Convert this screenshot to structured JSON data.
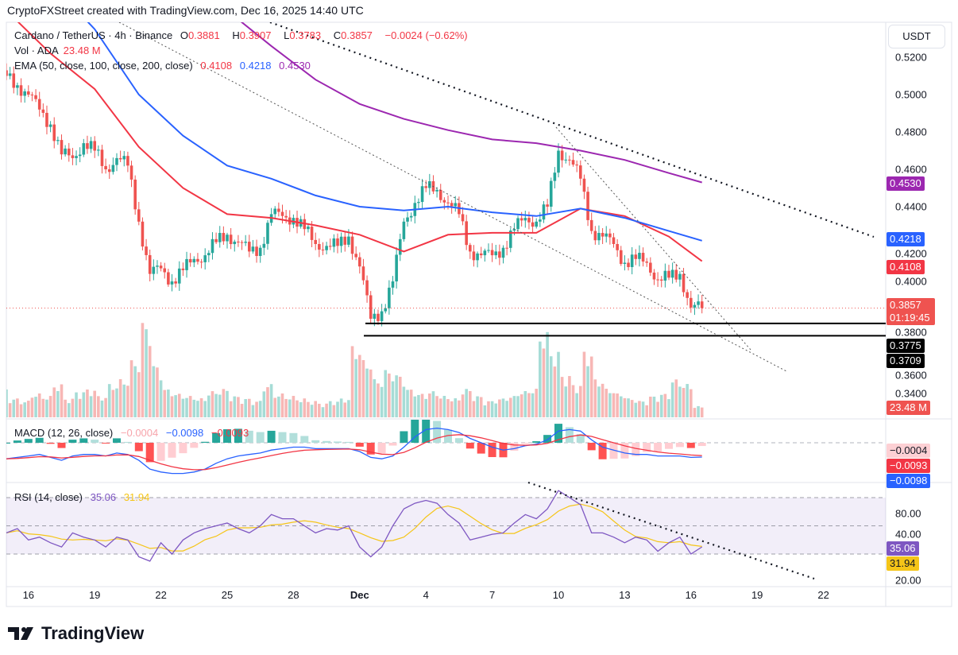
{
  "credit": "CryptoFXStreet created with TradingView.com, Dec 16, 2025 14:40 UTC",
  "legend": {
    "symbol": "Cardano / TetherUS · 4h · Binance",
    "o_label": "O",
    "o": "0.3881",
    "h_label": "H",
    "h": "0.3907",
    "l_label": "L",
    "l": "0.3783",
    "c_label": "C",
    "c": "0.3857",
    "change": "−0.0024 (−0.62%)",
    "vol_label": "Vol · ADA",
    "vol": "23.48 M",
    "ema_label": "EMA (50, close, 100, close, 200, close)",
    "ema50": "0.4108",
    "ema100": "0.4218",
    "ema200": "0.4530",
    "macd_label": "MACD (12, 26, close)",
    "macd_hist": "−0.0004",
    "macd_line": "−0.0098",
    "macd_signal": "−0.0093",
    "rsi_label": "RSI (14, close)",
    "rsi": "35.06",
    "rsi_ma": "31.94"
  },
  "axis": {
    "currency": "USDT",
    "price_ticks": [
      "0.5200",
      "0.5000",
      "0.4800",
      "0.4600",
      "0.4400",
      "0.4200",
      "0.4000",
      "0.3800",
      "0.3600",
      "0.3400"
    ],
    "rsi_ticks": [
      "80.00",
      "40.00",
      "20.00"
    ],
    "x_ticks": [
      "16",
      "19",
      "22",
      "25",
      "28",
      "Dec",
      "4",
      "7",
      "10",
      "13",
      "16",
      "19",
      "22"
    ]
  },
  "tags": {
    "ema200": "0.4530",
    "ema100": "0.4218",
    "ema50": "0.4108",
    "price": "0.3857",
    "countdown": "01:19:45",
    "level1": "0.3775",
    "level2": "0.3709",
    "volume": "23.48 M",
    "macd_hist": "−0.0004",
    "macd_signal": "−0.0093",
    "macd_line": "−0.0098",
    "rsi": "35.06",
    "rsi_ma": "31.94"
  },
  "colors": {
    "up": "#26a69a",
    "down": "#ef5350",
    "ema50": "#f23645",
    "ema100": "#2962ff",
    "ema200": "#9c27b0",
    "rsi": "#7e57c2",
    "rsi_ma": "#f5c518",
    "price_tag": "#ef5350"
  },
  "logo": "TradingView",
  "chart_data": {
    "type": "candlestick",
    "title": "Cardano / TetherUS · 4h · Binance",
    "x_start": "2025-11-15 00:00",
    "x_step": "12h",
    "ylim": [
      0.335,
      0.53
    ],
    "close": [
      0.51,
      0.505,
      0.5,
      0.492,
      0.484,
      0.468,
      0.466,
      0.474,
      0.47,
      0.46,
      0.466,
      0.462,
      0.432,
      0.404,
      0.407,
      0.4,
      0.406,
      0.412,
      0.414,
      0.421,
      0.425,
      0.421,
      0.416,
      0.418,
      0.436,
      0.435,
      0.434,
      0.428,
      0.42,
      0.419,
      0.419,
      0.424,
      0.408,
      0.38,
      0.384,
      0.4,
      0.432,
      0.442,
      0.45,
      0.449,
      0.442,
      0.436,
      0.416,
      0.414,
      0.414,
      0.418,
      0.428,
      0.434,
      0.432,
      0.44,
      0.47,
      0.465,
      0.455,
      0.427,
      0.424,
      0.42,
      0.41,
      0.412,
      0.41,
      0.401,
      0.402,
      0.404,
      0.386,
      0.3857
    ],
    "volume_m": [
      60,
      40,
      35,
      50,
      45,
      70,
      40,
      55,
      60,
      45,
      70,
      80,
      120,
      200,
      110,
      60,
      50,
      45,
      40,
      55,
      60,
      45,
      40,
      35,
      70,
      50,
      45,
      40,
      35,
      30,
      35,
      40,
      150,
      120,
      80,
      100,
      90,
      60,
      50,
      55,
      45,
      40,
      60,
      45,
      35,
      40,
      45,
      55,
      60,
      180,
      140,
      90,
      70,
      140,
      80,
      60,
      50,
      40,
      35,
      45,
      50,
      80,
      70,
      23.48
    ],
    "ema_step": "2d",
    "ema50": [
      0.545,
      0.522,
      0.503,
      0.472,
      0.45,
      0.436,
      0.434,
      0.43,
      0.425,
      0.416,
      0.425,
      0.426,
      0.426,
      0.439,
      0.435,
      0.424,
      0.4108
    ],
    "ema100": [
      0.575,
      0.56,
      0.535,
      0.5,
      0.478,
      0.462,
      0.455,
      0.446,
      0.44,
      0.438,
      0.44,
      0.437,
      0.435,
      0.439,
      0.434,
      0.427,
      0.4218
    ],
    "ema200": [
      0.6,
      0.59,
      0.578,
      0.565,
      0.555,
      0.545,
      0.526,
      0.508,
      0.495,
      0.487,
      0.481,
      0.476,
      0.474,
      0.47,
      0.465,
      0.458,
      0.453
    ],
    "horizontal_levels": [
      0.3775,
      0.3709
    ],
    "macd": [
      -0.011,
      -0.01,
      -0.009,
      -0.008,
      -0.01,
      -0.012,
      -0.009,
      -0.008,
      -0.008,
      -0.009,
      -0.007,
      -0.008,
      -0.012,
      -0.018,
      -0.02,
      -0.021,
      -0.021,
      -0.02,
      -0.018,
      -0.014,
      -0.011,
      -0.009,
      -0.008,
      -0.007,
      -0.005,
      -0.004,
      -0.003,
      -0.003,
      -0.004,
      -0.004,
      -0.004,
      -0.004,
      -0.006,
      -0.01,
      -0.011,
      -0.009,
      -0.003,
      0.004,
      0.009,
      0.01,
      0.009,
      0.007,
      0.003,
      0.0,
      -0.003,
      -0.005,
      -0.004,
      -0.002,
      -0.001,
      0.002,
      0.008,
      0.009,
      0.008,
      0.002,
      -0.003,
      -0.005,
      -0.007,
      -0.008,
      -0.008,
      -0.009,
      -0.009,
      -0.009,
      -0.01,
      -0.0098
    ],
    "rsi": [
      45,
      48,
      40,
      42,
      38,
      35,
      45,
      42,
      40,
      35,
      42,
      40,
      28,
      25,
      38,
      30,
      40,
      45,
      48,
      50,
      52,
      48,
      45,
      50,
      58,
      55,
      55,
      50,
      45,
      48,
      47,
      50,
      35,
      28,
      35,
      50,
      62,
      66,
      68,
      66,
      58,
      52,
      40,
      42,
      44,
      45,
      52,
      58,
      55,
      62,
      75,
      70,
      65,
      45,
      45,
      42,
      38,
      42,
      40,
      32,
      38,
      42,
      30,
      35.06
    ],
    "rsi_bands": [
      70,
      50,
      30
    ]
  }
}
